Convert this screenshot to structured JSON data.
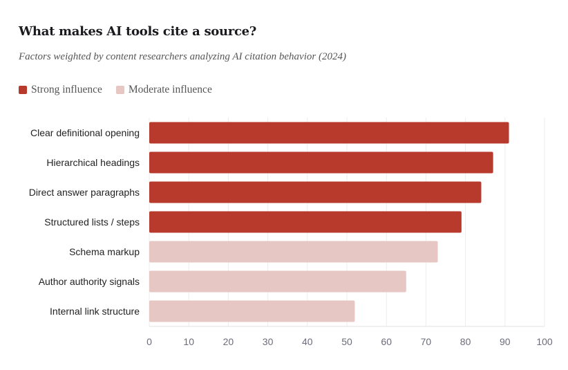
{
  "chart_data": {
    "type": "bar",
    "orientation": "horizontal",
    "title": "What makes AI tools cite a source?",
    "subtitle": "Factors weighted by content researchers analyzing AI citation behavior (2024)",
    "categories": [
      "Clear definitional opening",
      "Hierarchical headings",
      "Direct answer paragraphs",
      "Structured lists / steps",
      "Schema markup",
      "Author authority signals",
      "Internal link structure"
    ],
    "values": [
      91,
      87,
      84,
      79,
      73,
      65,
      52
    ],
    "groups": [
      "strong",
      "strong",
      "strong",
      "strong",
      "moderate",
      "moderate",
      "moderate"
    ],
    "legend": [
      {
        "key": "strong",
        "label": "Strong influence",
        "color": "#b83a2c"
      },
      {
        "key": "moderate",
        "label": "Moderate influence",
        "color": "#e6c7c3"
      }
    ],
    "xlim": [
      0,
      100
    ],
    "xticks": [
      0,
      10,
      20,
      30,
      40,
      50,
      60,
      70,
      80,
      90,
      100
    ],
    "grid": true,
    "legend_position": "top-left",
    "xlabel": "",
    "ylabel": ""
  }
}
